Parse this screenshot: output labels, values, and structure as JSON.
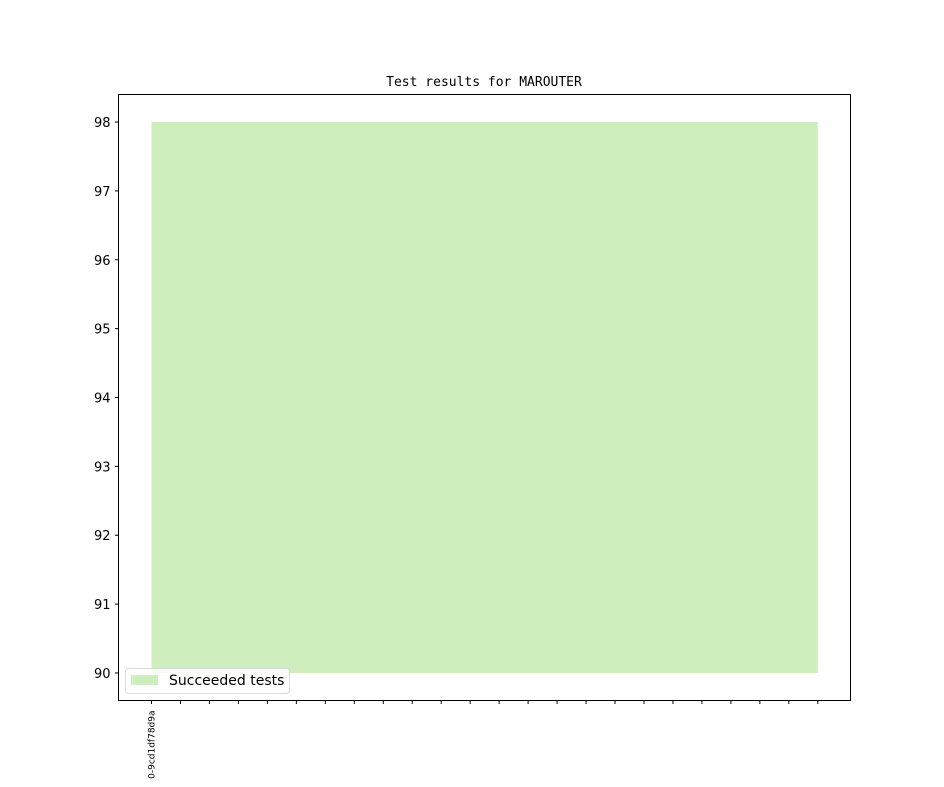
{
  "chart_data": {
    "type": "area",
    "title": "Test results for MAROUTER",
    "xlabel": "",
    "ylabel": "",
    "categories": [
      "0-9cd1df78d9a",
      "",
      "",
      "",
      "",
      "",
      "",
      "",
      "",
      "",
      "",
      "",
      "",
      "",
      "",
      "",
      "",
      "",
      "",
      "",
      "",
      "",
      "",
      ""
    ],
    "series": [
      {
        "name": "Succeeded tests",
        "color": "#cfeebe",
        "baseline": 90,
        "values": [
          98,
          98,
          98,
          98,
          98,
          98,
          98,
          98,
          98,
          98,
          98,
          98,
          98,
          98,
          98,
          98,
          98,
          98,
          98,
          98,
          98,
          98,
          98,
          98
        ]
      }
    ],
    "ylim": [
      89.6,
      98.4
    ],
    "yticks": [
      90,
      91,
      92,
      93,
      94,
      95,
      96,
      97,
      98
    ],
    "grid": false,
    "legend_position": "lower-left"
  }
}
